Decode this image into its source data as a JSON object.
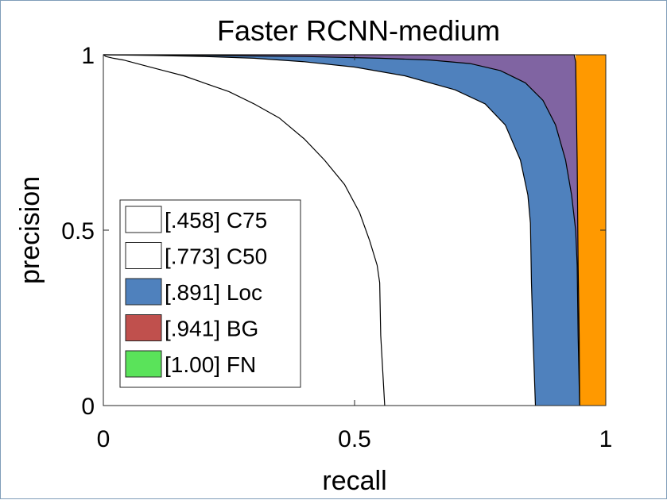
{
  "chart_data": {
    "type": "area",
    "title": "Faster RCNN-medium",
    "xlabel": "recall",
    "ylabel": "precision",
    "xlim": [
      0,
      1
    ],
    "ylim": [
      0,
      1
    ],
    "x_ticks": [
      "0",
      "0.5",
      "1"
    ],
    "y_ticks": [
      "0",
      "0.5",
      "1"
    ],
    "grid": false,
    "legend_position": "lower-left",
    "series": [
      {
        "name": "[.458] C75",
        "color": "#ffffff",
        "curve": [
          [
            0,
            1
          ],
          [
            0.005,
            0.995
          ],
          [
            0.02,
            0.99
          ],
          [
            0.04,
            0.985
          ],
          [
            0.08,
            0.97
          ],
          [
            0.12,
            0.955
          ],
          [
            0.16,
            0.94
          ],
          [
            0.2,
            0.92
          ],
          [
            0.25,
            0.895
          ],
          [
            0.3,
            0.86
          ],
          [
            0.35,
            0.82
          ],
          [
            0.4,
            0.76
          ],
          [
            0.44,
            0.7
          ],
          [
            0.48,
            0.63
          ],
          [
            0.51,
            0.55
          ],
          [
            0.53,
            0.47
          ],
          [
            0.545,
            0.4
          ],
          [
            0.55,
            0.35
          ],
          [
            0.552,
            0.2
          ],
          [
            0.556,
            0.1
          ],
          [
            0.56,
            0
          ]
        ]
      },
      {
        "name": "[.773] C50",
        "color": "#ffffff",
        "curve": [
          [
            0,
            1
          ],
          [
            0.1,
            0.998
          ],
          [
            0.2,
            0.995
          ],
          [
            0.3,
            0.99
          ],
          [
            0.4,
            0.98
          ],
          [
            0.5,
            0.965
          ],
          [
            0.6,
            0.94
          ],
          [
            0.7,
            0.9
          ],
          [
            0.76,
            0.86
          ],
          [
            0.8,
            0.8
          ],
          [
            0.83,
            0.7
          ],
          [
            0.845,
            0.6
          ],
          [
            0.85,
            0.52
          ],
          [
            0.852,
            0.35
          ],
          [
            0.855,
            0.2
          ],
          [
            0.86,
            0
          ]
        ]
      },
      {
        "name": "[.891] Loc",
        "color": "#4f81bd",
        "curve": [
          [
            0,
            1
          ],
          [
            0.2,
            0.998
          ],
          [
            0.4,
            0.995
          ],
          [
            0.55,
            0.99
          ],
          [
            0.65,
            0.985
          ],
          [
            0.73,
            0.975
          ],
          [
            0.79,
            0.955
          ],
          [
            0.84,
            0.92
          ],
          [
            0.875,
            0.87
          ],
          [
            0.9,
            0.8
          ],
          [
            0.92,
            0.7
          ],
          [
            0.932,
            0.6
          ],
          [
            0.94,
            0.5
          ],
          [
            0.943,
            0.4
          ],
          [
            0.945,
            0.2
          ],
          [
            0.948,
            0
          ]
        ]
      },
      {
        "name": "[.941] BG",
        "color": "#c0504d",
        "curve": [
          [
            0,
            1
          ],
          [
            0.937,
            1
          ],
          [
            0.94,
            0.98
          ],
          [
            0.943,
            0.7
          ],
          [
            0.945,
            0.4
          ],
          [
            0.947,
            0.2
          ],
          [
            0.948,
            0
          ]
        ]
      },
      {
        "name": "[1.00] FN",
        "color": "#5ae35a",
        "curve": [
          [
            0,
            1
          ],
          [
            1,
            1
          ],
          [
            1,
            0
          ]
        ]
      }
    ],
    "extra_regions": [
      {
        "color": "#8064a2",
        "between": [
          "[.891] Loc",
          "[.941] BG"
        ]
      },
      {
        "color": "#ff9900",
        "x_range": [
          0.94,
          1
        ]
      }
    ]
  }
}
